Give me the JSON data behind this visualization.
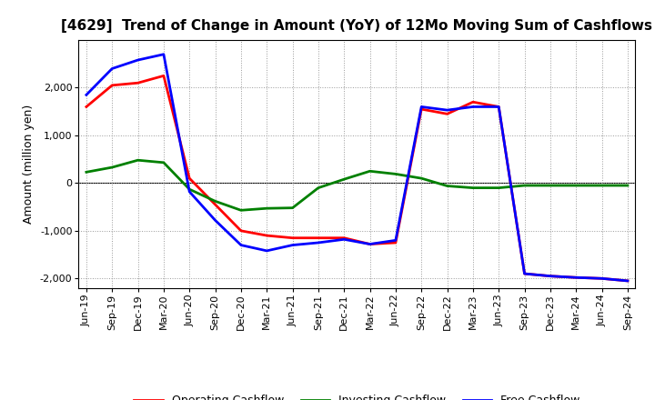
{
  "title": "[4629]  Trend of Change in Amount (YoY) of 12Mo Moving Sum of Cashflows",
  "ylabel": "Amount (million yen)",
  "x_labels": [
    "Jun-19",
    "Sep-19",
    "Dec-19",
    "Mar-20",
    "Jun-20",
    "Sep-20",
    "Dec-20",
    "Mar-21",
    "Jun-21",
    "Sep-21",
    "Dec-21",
    "Mar-22",
    "Jun-22",
    "Sep-22",
    "Dec-22",
    "Mar-23",
    "Jun-23",
    "Sep-23",
    "Dec-23",
    "Mar-24",
    "Jun-24",
    "Sep-24"
  ],
  "operating": [
    1600,
    2050,
    2100,
    2250,
    100,
    -450,
    -1000,
    -1100,
    -1150,
    -1150,
    -1150,
    -1280,
    -1250,
    1550,
    1450,
    1700,
    1600,
    -1900,
    -1950,
    -1980,
    -2000,
    -2050
  ],
  "investing": [
    230,
    330,
    480,
    430,
    -130,
    -380,
    -570,
    -530,
    -520,
    -100,
    80,
    250,
    190,
    100,
    -60,
    -100,
    -100,
    -50,
    -50,
    -50,
    -50,
    -50
  ],
  "free": [
    1850,
    2400,
    2580,
    2700,
    -180,
    -780,
    -1300,
    -1420,
    -1300,
    -1250,
    -1180,
    -1280,
    -1200,
    1600,
    1530,
    1600,
    1600,
    -1900,
    -1950,
    -1980,
    -2000,
    -2050
  ],
  "operating_color": "#ff0000",
  "investing_color": "#008000",
  "free_color": "#0000ff",
  "ylim": [
    -2200,
    3000
  ],
  "yticks": [
    -2000,
    -1000,
    0,
    1000,
    2000
  ],
  "background_color": "#ffffff",
  "plot_bg_color": "#ffffff",
  "grid_color": "#999999",
  "linewidth": 2.0,
  "title_fontsize": 11,
  "label_fontsize": 8,
  "ylabel_fontsize": 9,
  "legend_fontsize": 9
}
